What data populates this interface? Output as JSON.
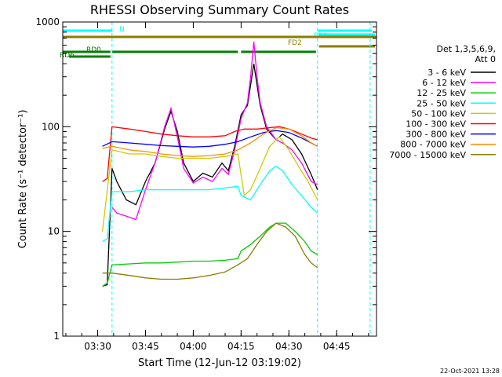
{
  "chart_data": {
    "type": "line",
    "title": "RHESSI Observing Summary Count Rates",
    "xlabel": "Start Time (12-Jun-12 03:19:02)",
    "ylabel": "Count Rate (s⁻¹ detector⁻¹)",
    "y_scale": "log",
    "ylim": [
      1,
      1000
    ],
    "xlim": [
      "03:19:02",
      "04:57:30"
    ],
    "x_ticks": [
      "03:30",
      "03:45",
      "04:00",
      "04:15",
      "04:30",
      "04:45"
    ],
    "y_ticks": [
      "1",
      "10",
      "100",
      "1000"
    ],
    "legend_title": [
      "Det 1,3,5,6,9,",
      "Att 0"
    ],
    "legend_position": "right",
    "footer_date": "22-Oct-2021 13:28",
    "flags": [
      {
        "label": "N",
        "color": "#00ffff",
        "segments": [
          [
            "03:19:02",
            "03:34:30"
          ],
          [
            "04:39:00",
            "04:56:00"
          ]
        ]
      },
      {
        "label": "FD1",
        "color": "#00ffff",
        "segments": [
          [
            "04:39:30",
            "04:57:00"
          ]
        ]
      },
      {
        "label": "FD2",
        "color": "#8b7d00",
        "segments": [
          [
            "04:39:30",
            "04:57:00"
          ]
        ]
      },
      {
        "label": "RD0",
        "color": "#008000",
        "segments": [
          [
            "03:19:02",
            "03:34:00"
          ],
          [
            "03:34:30",
            "04:14:00"
          ],
          [
            "04:15:00",
            "04:38:30"
          ]
        ]
      },
      {
        "label": "RD6",
        "color": "#008000",
        "segments": [
          [
            "03:21:00",
            "03:34:00"
          ]
        ]
      },
      {
        "label": "",
        "color": "#8b7d00",
        "segments": [
          [
            "03:19:02",
            "04:57:30"
          ]
        ]
      }
    ],
    "series": [
      {
        "name": "3 - 6 keV",
        "color": "#000000",
        "points": [
          [
            "03:31:30",
            3
          ],
          [
            "03:33:00",
            3.1
          ],
          [
            "03:34:30",
            40
          ],
          [
            "03:36:00",
            30
          ],
          [
            "03:39:00",
            20
          ],
          [
            "03:42:00",
            18
          ],
          [
            "03:45:00",
            30
          ],
          [
            "03:48:00",
            45
          ],
          [
            "03:51:00",
            95
          ],
          [
            "03:53:00",
            140
          ],
          [
            "03:55:00",
            90
          ],
          [
            "03:57:00",
            45
          ],
          [
            "04:00:00",
            30
          ],
          [
            "04:03:00",
            36
          ],
          [
            "04:06:00",
            33
          ],
          [
            "04:09:00",
            45
          ],
          [
            "04:11:00",
            38
          ],
          [
            "04:13:00",
            65
          ],
          [
            "04:15:00",
            130
          ],
          [
            "04:17:00",
            160
          ],
          [
            "04:18:00",
            250
          ],
          [
            "04:19:00",
            400
          ],
          [
            "04:20:00",
            250
          ],
          [
            "04:21:00",
            160
          ],
          [
            "04:23:00",
            95
          ],
          [
            "04:26:00",
            75
          ],
          [
            "04:28:00",
            85
          ],
          [
            "04:31:00",
            75
          ],
          [
            "04:34:00",
            55
          ],
          [
            "04:37:00",
            35
          ],
          [
            "04:39:00",
            25
          ]
        ]
      },
      {
        "name": "6 - 12 keV",
        "color": "#ff00ff",
        "points": [
          [
            "03:34:30",
            17
          ],
          [
            "03:36:00",
            15
          ],
          [
            "03:39:00",
            14
          ],
          [
            "03:42:00",
            13
          ],
          [
            "03:45:00",
            25
          ],
          [
            "03:48:00",
            45
          ],
          [
            "03:51:00",
            100
          ],
          [
            "03:53:00",
            150
          ],
          [
            "03:55:00",
            80
          ],
          [
            "03:57:00",
            40
          ],
          [
            "04:00:00",
            29
          ],
          [
            "04:03:00",
            33
          ],
          [
            "04:06:00",
            30
          ],
          [
            "04:09:00",
            40
          ],
          [
            "04:11:00",
            35
          ],
          [
            "04:13:00",
            60
          ],
          [
            "04:15:00",
            120
          ],
          [
            "04:17:00",
            170
          ],
          [
            "04:18:00",
            300
          ],
          [
            "04:19:00",
            650
          ],
          [
            "04:20:00",
            300
          ],
          [
            "04:21:00",
            170
          ],
          [
            "04:23:00",
            100
          ],
          [
            "04:26:00",
            75
          ],
          [
            "04:28:00",
            70
          ],
          [
            "04:31:00",
            60
          ],
          [
            "04:34:00",
            45
          ],
          [
            "04:37:00",
            30
          ],
          [
            "04:39:00",
            28
          ]
        ]
      },
      {
        "name": "12 - 25 keV",
        "color": "#00cc00",
        "points": [
          [
            "03:31:30",
            3
          ],
          [
            "03:33:00",
            3.2
          ],
          [
            "03:34:30",
            4.8
          ],
          [
            "03:40:00",
            4.9
          ],
          [
            "03:45:00",
            5
          ],
          [
            "03:50:00",
            5
          ],
          [
            "03:55:00",
            5.1
          ],
          [
            "04:00:00",
            5.2
          ],
          [
            "04:05:00",
            5.2
          ],
          [
            "04:10:00",
            5.3
          ],
          [
            "04:14:00",
            5.5
          ],
          [
            "04:15:00",
            6.5
          ],
          [
            "04:18:00",
            7.5
          ],
          [
            "04:21:00",
            9
          ],
          [
            "04:24:00",
            11
          ],
          [
            "04:26:00",
            12
          ],
          [
            "04:29:00",
            12
          ],
          [
            "04:32:00",
            10
          ],
          [
            "04:35:00",
            8
          ],
          [
            "04:37:00",
            6.5
          ],
          [
            "04:39:00",
            6
          ]
        ]
      },
      {
        "name": "25 - 50 keV",
        "color": "#00ffff",
        "points": [
          [
            "03:31:30",
            8
          ],
          [
            "03:33:00",
            8.5
          ],
          [
            "03:34:30",
            24
          ],
          [
            "03:40:00",
            24
          ],
          [
            "03:45:00",
            25
          ],
          [
            "03:50:00",
            25
          ],
          [
            "03:55:00",
            25
          ],
          [
            "04:00:00",
            25
          ],
          [
            "04:05:00",
            25
          ],
          [
            "04:10:00",
            26
          ],
          [
            "04:14:00",
            27
          ],
          [
            "04:15:00",
            22
          ],
          [
            "04:18:00",
            20
          ],
          [
            "04:21:00",
            28
          ],
          [
            "04:24:00",
            38
          ],
          [
            "04:26:00",
            42
          ],
          [
            "04:28:00",
            38
          ],
          [
            "04:31:00",
            28
          ],
          [
            "04:34:00",
            22
          ],
          [
            "04:37:00",
            17
          ],
          [
            "04:39:00",
            15
          ]
        ]
      },
      {
        "name": "50 - 100 keV",
        "color": "#cccc00",
        "points": [
          [
            "03:31:30",
            10
          ],
          [
            "03:34:30",
            60
          ],
          [
            "03:40:00",
            55
          ],
          [
            "03:45:00",
            55
          ],
          [
            "03:50:00",
            52
          ],
          [
            "03:55:00",
            50
          ],
          [
            "04:00:00",
            50
          ],
          [
            "04:05:00",
            50
          ],
          [
            "04:10:00",
            52
          ],
          [
            "04:14:00",
            55
          ],
          [
            "04:16:00",
            22
          ],
          [
            "04:18:00",
            25
          ],
          [
            "04:21:00",
            40
          ],
          [
            "04:24:00",
            65
          ],
          [
            "04:27:00",
            80
          ],
          [
            "04:30:00",
            60
          ],
          [
            "04:33:00",
            42
          ],
          [
            "04:36:00",
            30
          ],
          [
            "04:39:00",
            20
          ]
        ]
      },
      {
        "name": "100 - 300 keV",
        "color": "#ff0000",
        "points": [
          [
            "03:31:30",
            30
          ],
          [
            "03:33:00",
            32
          ],
          [
            "03:34:30",
            100
          ],
          [
            "03:40:00",
            95
          ],
          [
            "03:45:00",
            90
          ],
          [
            "03:50:00",
            85
          ],
          [
            "03:55:00",
            82
          ],
          [
            "04:00:00",
            80
          ],
          [
            "04:05:00",
            80
          ],
          [
            "04:10:00",
            82
          ],
          [
            "04:13:00",
            90
          ],
          [
            "04:16:00",
            95
          ],
          [
            "04:20:00",
            95
          ],
          [
            "04:24:00",
            98
          ],
          [
            "04:27:00",
            100
          ],
          [
            "04:30:00",
            95
          ],
          [
            "04:34:00",
            85
          ],
          [
            "04:37:00",
            78
          ],
          [
            "04:39:00",
            75
          ]
        ]
      },
      {
        "name": "300 - 800 keV",
        "color": "#0000ff",
        "points": [
          [
            "03:31:30",
            65
          ],
          [
            "03:34:30",
            72
          ],
          [
            "03:40:00",
            70
          ],
          [
            "03:45:00",
            68
          ],
          [
            "03:50:00",
            66
          ],
          [
            "03:55:00",
            65
          ],
          [
            "04:00:00",
            64
          ],
          [
            "04:05:00",
            65
          ],
          [
            "04:10:00",
            68
          ],
          [
            "04:14:00",
            72
          ],
          [
            "04:18:00",
            80
          ],
          [
            "04:22:00",
            88
          ],
          [
            "04:26:00",
            92
          ],
          [
            "04:30:00",
            88
          ],
          [
            "04:34:00",
            78
          ],
          [
            "04:37:00",
            70
          ],
          [
            "04:39:00",
            65
          ]
        ]
      },
      {
        "name": "800 - 7000 keV",
        "color": "#ff8c00",
        "points": [
          [
            "03:31:30",
            62
          ],
          [
            "03:34:30",
            65
          ],
          [
            "03:40:00",
            60
          ],
          [
            "03:45:00",
            58
          ],
          [
            "03:50:00",
            55
          ],
          [
            "03:55:00",
            53
          ],
          [
            "04:00:00",
            52
          ],
          [
            "04:05:00",
            53
          ],
          [
            "04:10:00",
            55
          ],
          [
            "04:14:00",
            60
          ],
          [
            "04:18:00",
            70
          ],
          [
            "04:22:00",
            85
          ],
          [
            "04:26:00",
            98
          ],
          [
            "04:30:00",
            95
          ],
          [
            "04:34:00",
            82
          ],
          [
            "04:37:00",
            70
          ],
          [
            "04:39:00",
            65
          ]
        ]
      },
      {
        "name": "7000 - 15000 keV",
        "color": "#8b7d00",
        "points": [
          [
            "03:31:30",
            4
          ],
          [
            "03:34:30",
            4
          ],
          [
            "03:40:00",
            3.8
          ],
          [
            "03:45:00",
            3.6
          ],
          [
            "03:50:00",
            3.5
          ],
          [
            "03:55:00",
            3.5
          ],
          [
            "04:00:00",
            3.6
          ],
          [
            "04:05:00",
            3.8
          ],
          [
            "04:10:00",
            4.1
          ],
          [
            "04:14:00",
            4.8
          ],
          [
            "04:17:00",
            5.5
          ],
          [
            "04:20:00",
            7.5
          ],
          [
            "04:23:00",
            10
          ],
          [
            "04:26:00",
            12
          ],
          [
            "04:29:00",
            11
          ],
          [
            "04:32:00",
            9
          ],
          [
            "04:35:00",
            6
          ],
          [
            "04:37:00",
            5
          ],
          [
            "04:39:00",
            4.5
          ]
        ]
      }
    ]
  }
}
